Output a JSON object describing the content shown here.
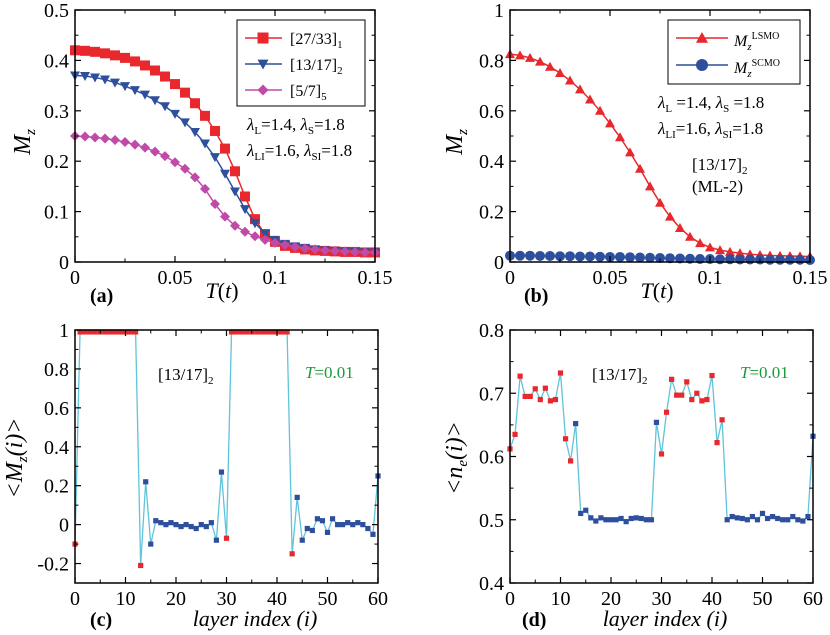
{
  "chart_data": [
    {
      "panel": "(a)",
      "type": "line",
      "xlabel": "T(t)",
      "ylabel": "M_z",
      "xlim": [
        0,
        0.15
      ],
      "ylim": [
        0,
        0.5
      ],
      "xticks": [
        "0",
        "0.05",
        "0.1",
        "0.15"
      ],
      "yticks": [
        "0",
        "0.1",
        "0.2",
        "0.3",
        "0.4",
        "0.5"
      ],
      "annotations": [
        "λL=1.4,  λS=1.8",
        "λLI=1.6,  λSI=1.8"
      ],
      "series": [
        {
          "name": "[27/33]1",
          "color": "#e8282c",
          "marker": "square",
          "x": [
            0,
            0.005,
            0.01,
            0.015,
            0.02,
            0.025,
            0.03,
            0.035,
            0.04,
            0.045,
            0.05,
            0.055,
            0.06,
            0.065,
            0.07,
            0.075,
            0.08,
            0.085,
            0.09,
            0.095,
            0.1,
            0.105,
            0.11,
            0.115,
            0.12,
            0.125,
            0.13,
            0.135,
            0.14,
            0.145,
            0.15
          ],
          "y": [
            0.42,
            0.419,
            0.417,
            0.414,
            0.41,
            0.405,
            0.398,
            0.39,
            0.38,
            0.368,
            0.353,
            0.336,
            0.315,
            0.29,
            0.26,
            0.225,
            0.18,
            0.13,
            0.085,
            0.055,
            0.04,
            0.032,
            0.028,
            0.025,
            0.023,
            0.022,
            0.021,
            0.02,
            0.02,
            0.019,
            0.019
          ]
        },
        {
          "name": "[13/17]2",
          "color": "#2e4f9c",
          "marker": "triangle-down",
          "x": [
            0,
            0.005,
            0.01,
            0.015,
            0.02,
            0.025,
            0.03,
            0.035,
            0.04,
            0.045,
            0.05,
            0.055,
            0.06,
            0.065,
            0.07,
            0.075,
            0.08,
            0.085,
            0.09,
            0.095,
            0.1,
            0.105,
            0.11,
            0.115,
            0.12,
            0.125,
            0.13,
            0.135,
            0.14,
            0.145,
            0.15
          ],
          "y": [
            0.37,
            0.369,
            0.366,
            0.362,
            0.356,
            0.349,
            0.341,
            0.332,
            0.321,
            0.309,
            0.294,
            0.277,
            0.258,
            0.235,
            0.208,
            0.175,
            0.14,
            0.105,
            0.077,
            0.057,
            0.044,
            0.036,
            0.031,
            0.028,
            0.025,
            0.023,
            0.022,
            0.021,
            0.02,
            0.019,
            0.019
          ]
        },
        {
          "name": "[5/7]5",
          "color": "#c04aa8",
          "marker": "diamond",
          "x": [
            0,
            0.005,
            0.01,
            0.015,
            0.02,
            0.025,
            0.03,
            0.035,
            0.04,
            0.045,
            0.05,
            0.055,
            0.06,
            0.065,
            0.07,
            0.075,
            0.08,
            0.085,
            0.09,
            0.095,
            0.1,
            0.105,
            0.11,
            0.115,
            0.12,
            0.125,
            0.13,
            0.135,
            0.14,
            0.145,
            0.15
          ],
          "y": [
            0.25,
            0.249,
            0.247,
            0.245,
            0.242,
            0.238,
            0.233,
            0.227,
            0.219,
            0.21,
            0.198,
            0.185,
            0.168,
            0.145,
            0.115,
            0.09,
            0.072,
            0.06,
            0.051,
            0.044,
            0.038,
            0.034,
            0.03,
            0.027,
            0.025,
            0.023,
            0.022,
            0.021,
            0.02,
            0.019,
            0.019
          ]
        }
      ]
    },
    {
      "panel": "(b)",
      "type": "line",
      "xlabel": "T(t)",
      "ylabel": "M_z",
      "xlim": [
        0,
        0.15
      ],
      "ylim": [
        0,
        1
      ],
      "xticks": [
        "0",
        "0.05",
        "0.1",
        "0.15"
      ],
      "yticks": [
        "0",
        "0.2",
        "0.4",
        "0.6",
        "0.8",
        "1"
      ],
      "annotations": [
        "λL=1.4,  λS=1.8",
        "λLI=1.6,  λSI=1.8",
        "[13/17]2",
        "(ML-2)"
      ],
      "series": [
        {
          "name": "M_z^LSMO",
          "color": "#e8282c",
          "marker": "triangle-up",
          "x": [
            0,
            0.005,
            0.01,
            0.015,
            0.02,
            0.025,
            0.03,
            0.035,
            0.04,
            0.045,
            0.05,
            0.055,
            0.06,
            0.065,
            0.07,
            0.075,
            0.08,
            0.085,
            0.09,
            0.095,
            0.1,
            0.105,
            0.11,
            0.115,
            0.12,
            0.125,
            0.13,
            0.135,
            0.14,
            0.145,
            0.15
          ],
          "y": [
            0.825,
            0.82,
            0.81,
            0.795,
            0.775,
            0.75,
            0.72,
            0.685,
            0.645,
            0.6,
            0.55,
            0.495,
            0.435,
            0.37,
            0.3,
            0.235,
            0.18,
            0.135,
            0.1,
            0.075,
            0.058,
            0.047,
            0.04,
            0.035,
            0.031,
            0.028,
            0.026,
            0.025,
            0.024,
            0.023,
            0.022
          ]
        },
        {
          "name": "M_z^SCMO",
          "color": "#2e4f9c",
          "marker": "circle",
          "x": [
            0,
            0.005,
            0.01,
            0.015,
            0.02,
            0.025,
            0.03,
            0.035,
            0.04,
            0.045,
            0.05,
            0.055,
            0.06,
            0.065,
            0.07,
            0.075,
            0.08,
            0.085,
            0.09,
            0.095,
            0.1,
            0.105,
            0.11,
            0.115,
            0.12,
            0.125,
            0.13,
            0.135,
            0.14,
            0.145,
            0.15
          ],
          "y": [
            0.025,
            0.025,
            0.025,
            0.024,
            0.024,
            0.023,
            0.023,
            0.022,
            0.022,
            0.021,
            0.02,
            0.02,
            0.019,
            0.018,
            0.017,
            0.016,
            0.015,
            0.014,
            0.013,
            0.012,
            0.012,
            0.011,
            0.011,
            0.01,
            0.01,
            0.01,
            0.009,
            0.009,
            0.009,
            0.009,
            0.008
          ]
        }
      ]
    },
    {
      "panel": "(c)",
      "type": "line",
      "xlabel": "layer index (i)",
      "ylabel": "<M_z(i)>",
      "xlim": [
        0,
        60
      ],
      "ylim": [
        -0.3,
        1
      ],
      "xticks": [
        "0",
        "10",
        "20",
        "30",
        "40",
        "50",
        "60"
      ],
      "yticks": [
        "-0.2",
        "0",
        "0.2",
        "0.4",
        "0.6",
        "0.8",
        "1"
      ],
      "annotations": [
        "[13/17]2",
        "T=0.01"
      ],
      "line_color": "#5fc4dc",
      "series": [
        {
          "name": "layers",
          "x_start": 0,
          "values": [
            -0.1,
            0.99,
            0.99,
            0.99,
            0.99,
            0.99,
            0.99,
            0.99,
            0.99,
            0.99,
            0.99,
            0.99,
            0.99,
            -0.21,
            0.22,
            -0.1,
            0.02,
            0.01,
            0.0,
            0.01,
            0.0,
            -0.01,
            0.0,
            -0.01,
            -0.02,
            0.0,
            -0.01,
            0.01,
            -0.08,
            0.27,
            -0.07,
            0.99,
            0.99,
            0.99,
            0.99,
            0.99,
            0.99,
            0.99,
            0.99,
            0.99,
            0.99,
            0.99,
            0.99,
            -0.15,
            0.14,
            -0.08,
            -0.02,
            -0.03,
            0.03,
            0.02,
            -0.04,
            0.03,
            0.0,
            0.0,
            0.01,
            0.0,
            0.01,
            0.0,
            -0.02,
            -0.05,
            0.25
          ],
          "colors": [
            "r",
            "r",
            "r",
            "r",
            "r",
            "r",
            "r",
            "r",
            "r",
            "r",
            "r",
            "r",
            "r",
            "r",
            "b",
            "b",
            "b",
            "b",
            "b",
            "b",
            "b",
            "b",
            "b",
            "b",
            "b",
            "b",
            "b",
            "b",
            "b",
            "b",
            "r",
            "r",
            "r",
            "r",
            "r",
            "r",
            "r",
            "r",
            "r",
            "r",
            "r",
            "r",
            "r",
            "r",
            "b",
            "b",
            "b",
            "b",
            "b",
            "b",
            "b",
            "b",
            "b",
            "b",
            "b",
            "b",
            "b",
            "b",
            "b",
            "b",
            "b"
          ]
        }
      ]
    },
    {
      "panel": "(d)",
      "type": "line",
      "xlabel": "layer index (i)",
      "ylabel": "<n_e(i)>",
      "xlim": [
        0,
        60
      ],
      "ylim": [
        0.4,
        0.8
      ],
      "xticks": [
        "0",
        "10",
        "20",
        "30",
        "40",
        "50",
        "60"
      ],
      "yticks": [
        "0.4",
        "0.5",
        "0.6",
        "0.7",
        "0.8"
      ],
      "annotations": [
        "[13/17]2",
        "T=0.01"
      ],
      "line_color": "#5fc4dc",
      "series": [
        {
          "name": "layers",
          "x_start": 0,
          "values": [
            0.612,
            0.635,
            0.727,
            0.695,
            0.695,
            0.707,
            0.69,
            0.708,
            0.688,
            0.69,
            0.732,
            0.628,
            0.593,
            0.652,
            0.51,
            0.515,
            0.503,
            0.498,
            0.503,
            0.5,
            0.5,
            0.5,
            0.502,
            0.497,
            0.502,
            0.503,
            0.502,
            0.5,
            0.5,
            0.654,
            0.604,
            0.67,
            0.722,
            0.697,
            0.697,
            0.718,
            0.69,
            0.7,
            0.688,
            0.69,
            0.728,
            0.622,
            0.658,
            0.5,
            0.505,
            0.503,
            0.502,
            0.5,
            0.505,
            0.5,
            0.51,
            0.502,
            0.505,
            0.502,
            0.5,
            0.5,
            0.505,
            0.5,
            0.498,
            0.505,
            0.632
          ],
          "colors": [
            "r",
            "r",
            "r",
            "r",
            "r",
            "r",
            "r",
            "r",
            "r",
            "r",
            "r",
            "r",
            "r",
            "b",
            "b",
            "b",
            "b",
            "b",
            "b",
            "b",
            "b",
            "b",
            "b",
            "b",
            "b",
            "b",
            "b",
            "b",
            "b",
            "b",
            "r",
            "r",
            "r",
            "r",
            "r",
            "r",
            "r",
            "r",
            "r",
            "r",
            "r",
            "r",
            "r",
            "b",
            "b",
            "b",
            "b",
            "b",
            "b",
            "b",
            "b",
            "b",
            "b",
            "b",
            "b",
            "b",
            "b",
            "b",
            "b",
            "b",
            "b"
          ]
        }
      ]
    }
  ],
  "colors": {
    "red": "#e8282c",
    "blue": "#2e4f9c",
    "magenta": "#c04aa8",
    "cyan": "#5fc4dc",
    "green": "#1a9a3a"
  }
}
